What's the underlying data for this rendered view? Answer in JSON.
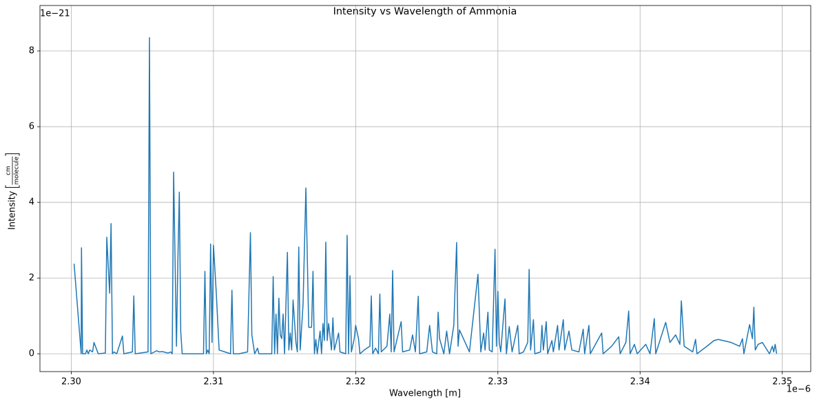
{
  "chart_data": {
    "type": "line",
    "title": "Intensity vs Wavelength of Ammonia",
    "xlabel": "Wavelength [m]",
    "ylabel": "Intensity",
    "ylabel_unit": {
      "numerator": "cm",
      "denominator": "molecule"
    },
    "x_offset": "1e−6",
    "y_offset": "1e−21",
    "color": "#1f77b4",
    "grid": true,
    "xlim": [
      2.2978,
      2.352
    ],
    "ylim": [
      -0.47,
      9.2
    ],
    "xticks": [
      {
        "value": 2.3,
        "label": "2.30"
      },
      {
        "value": 2.31,
        "label": "2.31"
      },
      {
        "value": 2.32,
        "label": "2.32"
      },
      {
        "value": 2.33,
        "label": "2.33"
      },
      {
        "value": 2.34,
        "label": "2.34"
      },
      {
        "value": 2.35,
        "label": "2.35"
      }
    ],
    "yticks": [
      0,
      2,
      4,
      6,
      8
    ],
    "x": [
      2.3002,
      2.3007,
      2.30072,
      2.3008,
      2.301,
      2.3011,
      2.3012,
      2.3013,
      2.3015,
      2.3016,
      2.3019,
      2.3024,
      2.3025,
      2.3027,
      2.3028,
      2.3029,
      2.303,
      2.3032,
      2.3036,
      2.3037,
      2.3043,
      2.3044,
      2.3045,
      2.3054,
      2.3055,
      2.3056,
      2.306,
      2.3062,
      2.3064,
      2.3068,
      2.307,
      2.3071,
      2.3072,
      2.3074,
      2.3075,
      2.3076,
      2.3077,
      2.3078,
      2.3093,
      2.3094,
      2.3095,
      2.3096,
      2.3097,
      2.3098,
      2.3099,
      2.31,
      2.3102,
      2.3104,
      2.3108,
      2.3112,
      2.3113,
      2.3114,
      2.3118,
      2.3124,
      2.3126,
      2.3127,
      2.3129,
      2.3131,
      2.3132,
      2.3141,
      2.3142,
      2.3143,
      2.3144,
      2.3145,
      2.3146,
      2.3147,
      2.3148,
      2.3149,
      2.315,
      2.3152,
      2.3153,
      2.3154,
      2.3155,
      2.3156,
      2.3158,
      2.3159,
      2.316,
      2.3161,
      2.3163,
      2.3165,
      2.3167,
      2.3169,
      2.317,
      2.3171,
      2.3172,
      2.3173,
      2.3175,
      2.3176,
      2.3177,
      2.3178,
      2.3179,
      2.318,
      2.3181,
      2.3183,
      2.3184,
      2.3185,
      2.3188,
      2.3189,
      2.3193,
      2.3194,
      2.3195,
      2.3196,
      2.3197,
      2.3199,
      2.32,
      2.3202,
      2.3203,
      2.3206,
      2.321,
      2.3211,
      2.3212,
      2.3214,
      2.3216,
      2.3217,
      2.3218,
      2.3222,
      2.3224,
      2.3225,
      2.3226,
      2.3227,
      2.3232,
      2.3233,
      2.3238,
      2.324,
      2.3242,
      2.3244,
      2.3245,
      2.325,
      2.3252,
      2.3254,
      2.3257,
      2.3258,
      2.3259,
      2.3262,
      2.3264,
      2.3266,
      2.3269,
      2.3271,
      2.3272,
      2.3273,
      2.3277,
      2.328,
      2.3286,
      2.3288,
      2.329,
      2.3291,
      2.3293,
      2.3294,
      2.3296,
      2.3298,
      2.3299,
      2.33,
      2.3301,
      2.3302,
      2.3305,
      2.3306,
      2.3308,
      2.331,
      2.3314,
      2.3315,
      2.3318,
      2.3321,
      2.3322,
      2.3323,
      2.3325,
      2.3326,
      2.333,
      2.3331,
      2.3332,
      2.3334,
      2.3335,
      2.3338,
      2.3339,
      2.3342,
      2.3343,
      2.3346,
      2.3347,
      2.335,
      2.3352,
      2.3357,
      2.336,
      2.3361,
      2.3364,
      2.3365,
      2.3373,
      2.3374,
      2.338,
      2.3385,
      2.3386,
      2.339,
      2.3392,
      2.3393,
      2.3396,
      2.3398,
      2.3404,
      2.3407,
      2.341,
      2.3411,
      2.3418,
      2.3421,
      2.3425,
      2.3428,
      2.3429,
      2.3431,
      2.3437,
      2.3439,
      2.344,
      2.3447,
      2.3452,
      2.3455,
      2.3464,
      2.347,
      2.3472,
      2.3473,
      2.3477,
      2.3479,
      2.348,
      2.3481,
      2.3483,
      2.3486,
      2.3491,
      2.3493,
      2.3494,
      2.3495,
      2.3496
    ],
    "values": [
      2.38,
      0,
      2.8,
      0,
      0,
      0.1,
      0,
      0.1,
      0.05,
      0.3,
      0,
      0.02,
      3.08,
      1.6,
      3.44,
      0,
      0.05,
      0,
      0.47,
      0,
      0.05,
      1.53,
      0,
      0.05,
      8.35,
      0,
      0.08,
      0.05,
      0.06,
      0.02,
      0.05,
      0,
      4.8,
      0.2,
      2.5,
      4.27,
      0.6,
      0,
      0,
      2.18,
      0,
      0.1,
      0,
      2.9,
      0.3,
      2.87,
      1.6,
      0.1,
      0.05,
      0,
      1.68,
      0,
      0,
      0.05,
      3.2,
      0.5,
      0,
      0.15,
      0,
      0,
      2.04,
      0,
      1.05,
      0,
      1.47,
      0.5,
      0.4,
      1.05,
      0,
      2.68,
      0.1,
      0.55,
      0.1,
      1.42,
      0.3,
      0.05,
      2.82,
      0.1,
      1.3,
      4.38,
      0.7,
      0.7,
      2.18,
      0,
      0.38,
      0,
      0.6,
      0,
      0.8,
      0.35,
      2.95,
      0.35,
      0.8,
      0.1,
      0.95,
      0.1,
      0.55,
      0.05,
      0,
      3.13,
      0,
      2.06,
      0.05,
      0.4,
      0.75,
      0.4,
      0,
      0.1,
      0.2,
      1.53,
      0,
      0.15,
      0,
      1.58,
      0.05,
      0.2,
      1.05,
      0.05,
      2.2,
      0.05,
      0.85,
      0.05,
      0.1,
      0.5,
      0.05,
      1.52,
      0,
      0.05,
      0.75,
      0.05,
      0,
      1.1,
      0.4,
      0,
      0.6,
      0,
      0.75,
      2.94,
      0.2,
      0.63,
      0.3,
      0.05,
      2.1,
      0.05,
      0.55,
      0.1,
      1.1,
      0.1,
      0.05,
      2.76,
      0.2,
      1.65,
      0.3,
      0.05,
      1.45,
      0,
      0.72,
      0.05,
      0.75,
      0,
      0.05,
      0.3,
      2.23,
      0.1,
      0.9,
      0,
      0.05,
      0.75,
      0.1,
      0.85,
      0,
      0.35,
      0.05,
      0.75,
      0.1,
      0.9,
      0.1,
      0.6,
      0.1,
      0.05,
      0.65,
      0,
      0.75,
      0,
      0.55,
      0,
      0.2,
      0.45,
      0,
      0.3,
      1.13,
      0,
      0.25,
      0,
      0.25,
      0,
      0.93,
      0,
      0.83,
      0.3,
      0.5,
      0.25,
      1.4,
      0.2,
      0.05,
      0.38,
      0,
      0.2,
      0.35,
      0.38,
      0.3,
      0.2,
      0.4,
      0,
      0.77,
      0.4,
      1.23,
      0.1,
      0.25,
      0.3,
      0,
      0.2,
      0.05,
      0.25,
      0
    ]
  }
}
